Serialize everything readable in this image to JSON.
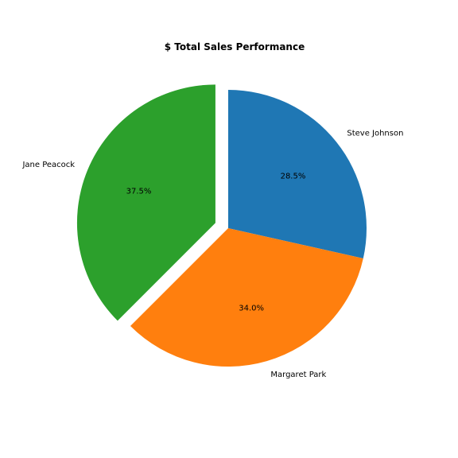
{
  "chart_data": {
    "type": "pie",
    "title": "$ Total Sales Performance",
    "slices": [
      {
        "label": "Steve Johnson",
        "value": 28.5,
        "pct_label": "28.5%",
        "color": "#1f77b4",
        "explode": false
      },
      {
        "label": "Margaret Park",
        "value": 34.0,
        "pct_label": "34.0%",
        "color": "#ff7f0e",
        "explode": false
      },
      {
        "label": "Jane Peacock",
        "value": 37.5,
        "pct_label": "37.5%",
        "color": "#2ca02c",
        "explode": true
      }
    ],
    "start_angle": 90,
    "counterclock": false
  }
}
